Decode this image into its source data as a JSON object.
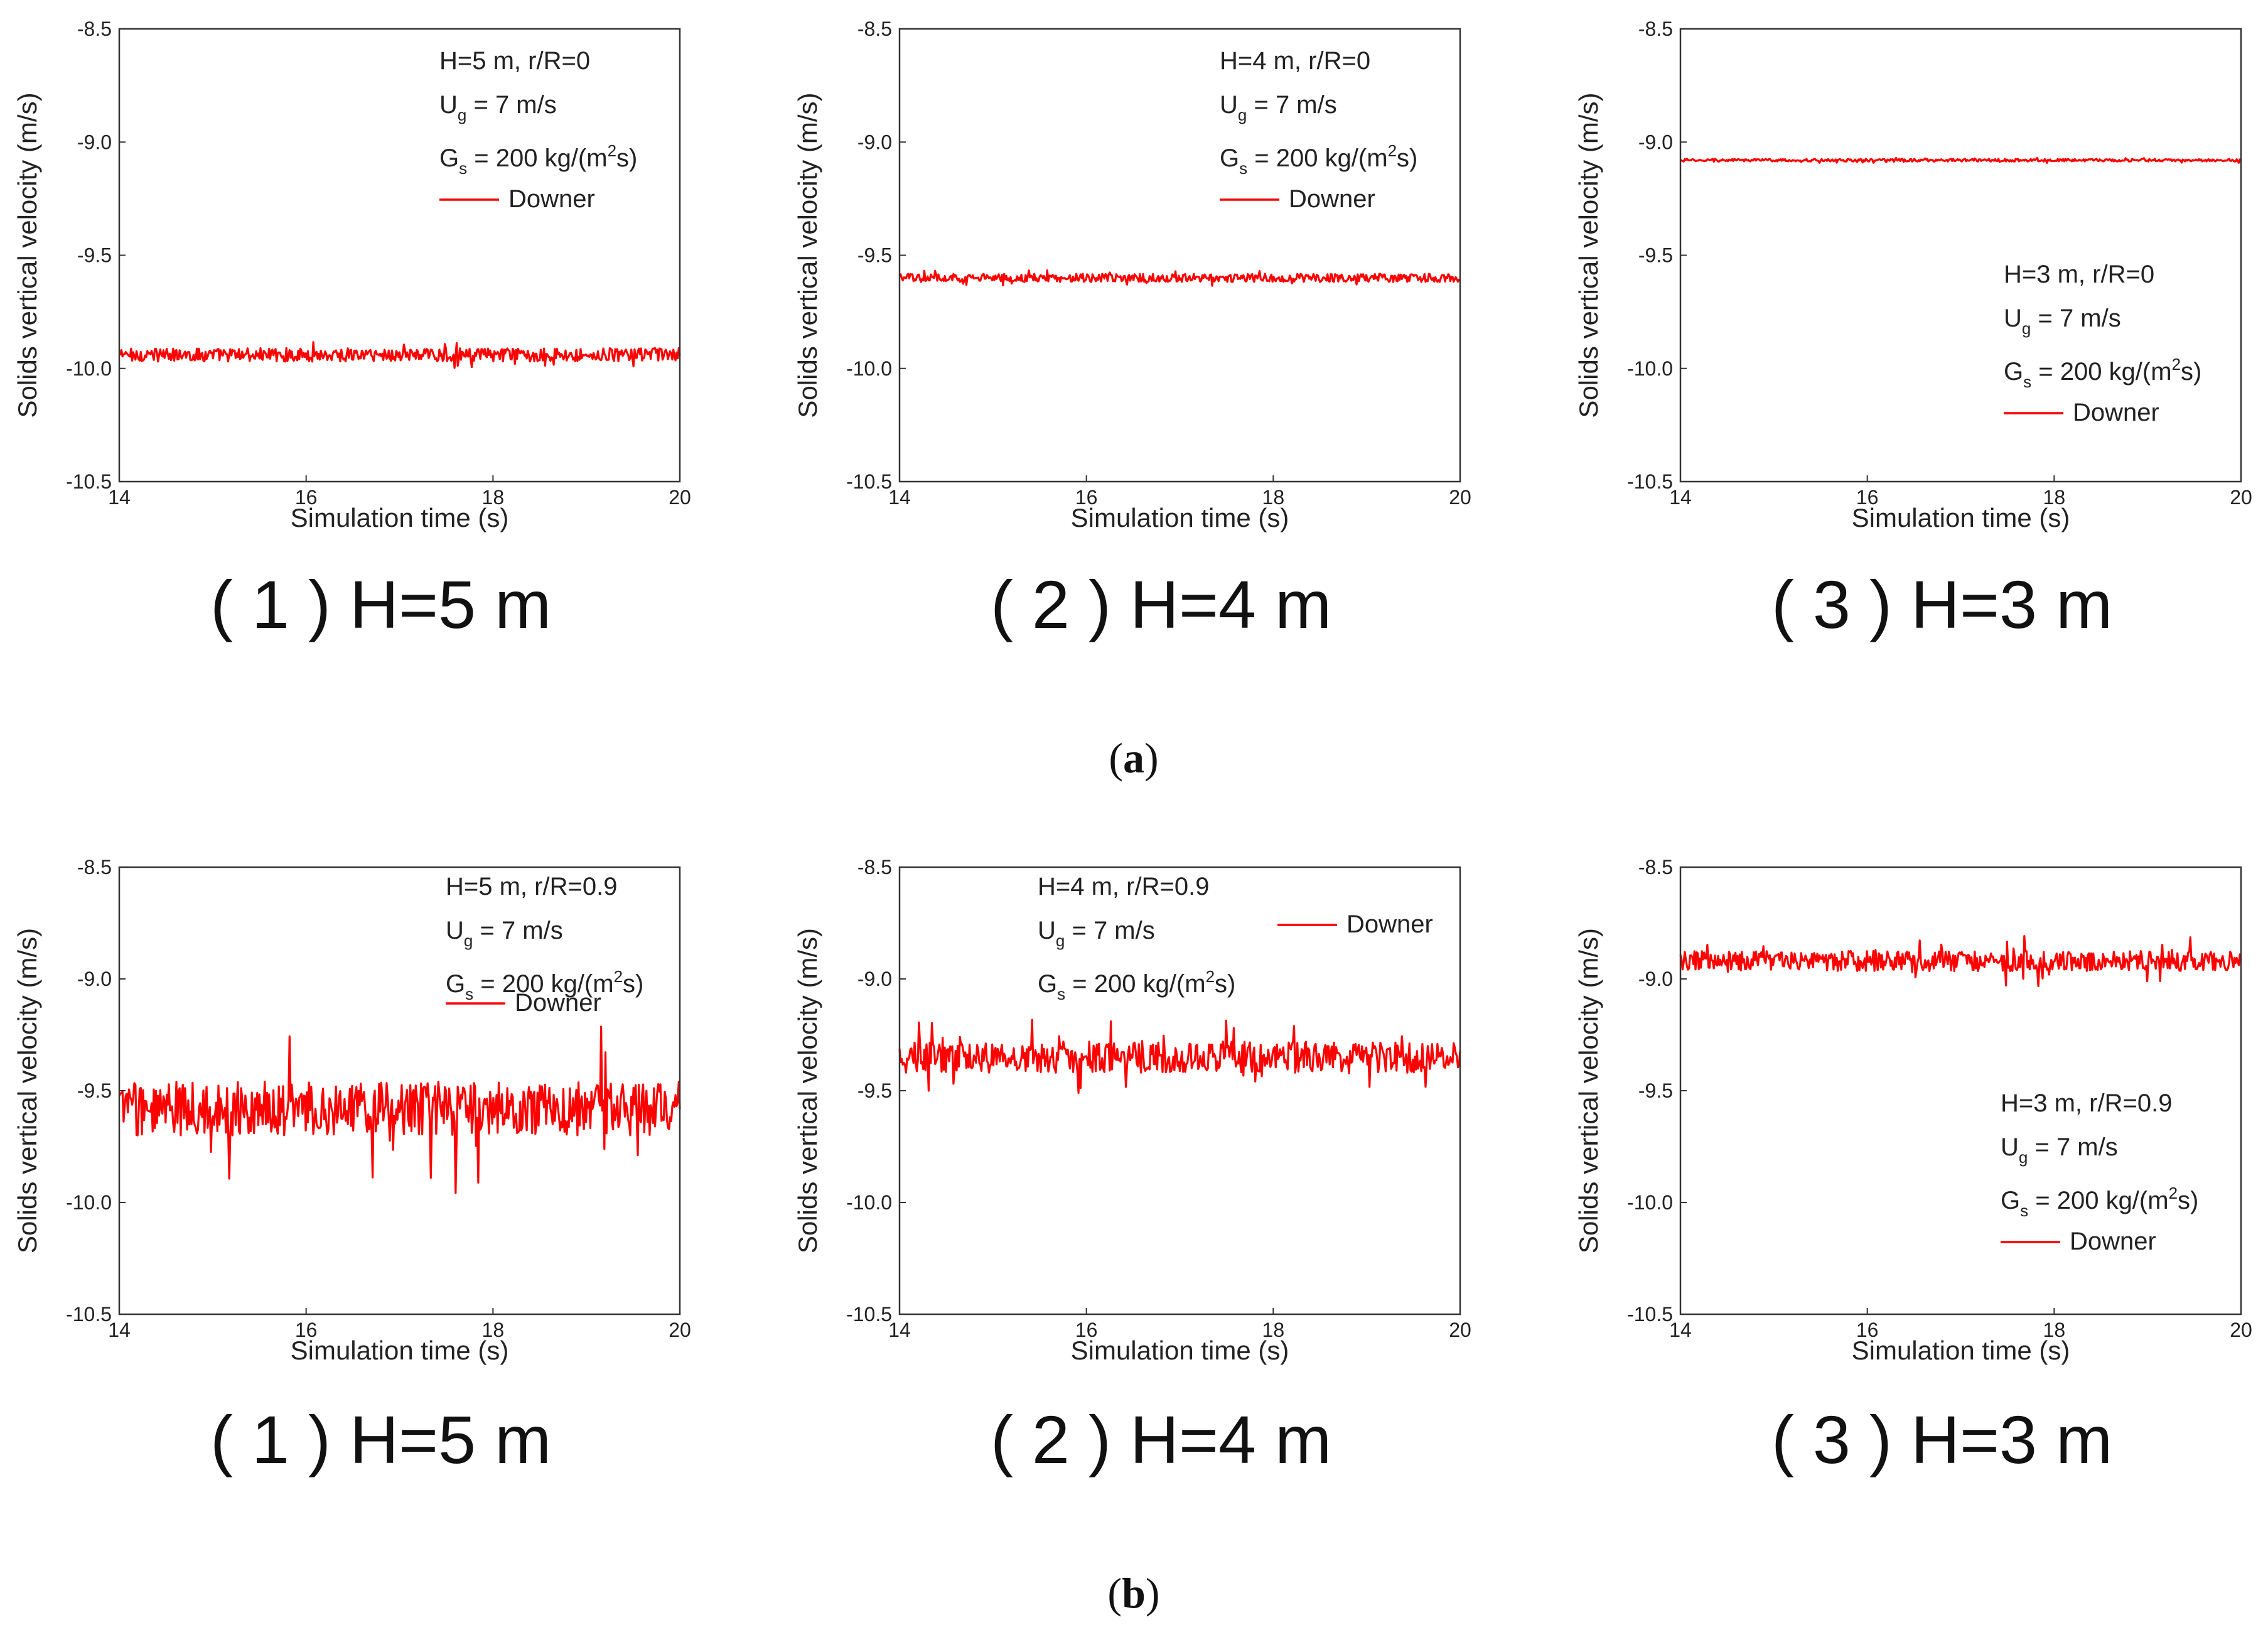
{
  "figure_parts": [
    {
      "label": "(a)",
      "letter": "a"
    },
    {
      "label": "(b)",
      "letter": "b"
    }
  ],
  "chart_data": [
    {
      "type": "line",
      "row": "a",
      "caption": "( 1 ) H=5 m",
      "annotation": {
        "line1": "H=5 m, r/R=0",
        "ug_label": "U",
        "ug_sub": "g",
        "ug_value": " = 7 m/s",
        "gs_label": "G",
        "gs_sub": "s",
        "gs_value": " = 200 kg/(m",
        "gs_sup": "2",
        "gs_end": "s)"
      },
      "legend": "Downer",
      "color": "#ff0000",
      "xlabel": "Simulation time (s)",
      "ylabel": "Solids vertical velocity (m/s)",
      "xlim": [
        14,
        20
      ],
      "ylim": [
        -10.5,
        -8.5
      ],
      "xticks": [
        14,
        16,
        18,
        20
      ],
      "yticks": [
        -8.5,
        -9.0,
        -9.5,
        -10.0,
        -10.5
      ],
      "xtick_labels": [
        "14",
        "16",
        "18",
        "20"
      ],
      "ytick_labels": [
        "-8.5",
        "-9.0",
        "-9.5",
        "-10.0",
        "-10.5"
      ],
      "series": [
        {
          "name": "Downer",
          "mean": -9.94,
          "noise_amplitude": 0.03,
          "spike_amplitude": 0.06,
          "samples": 520
        }
      ]
    },
    {
      "type": "line",
      "row": "a",
      "caption": "( 2 ) H=4 m",
      "annotation": {
        "line1": "H=4 m, r/R=0",
        "ug_label": "U",
        "ug_sub": "g",
        "ug_value": " = 7 m/s",
        "gs_label": "G",
        "gs_sub": "s",
        "gs_value": " = 200 kg/(m",
        "gs_sup": "2",
        "gs_end": "s)"
      },
      "legend": "Downer",
      "color": "#ff0000",
      "xlabel": "Simulation time (s)",
      "ylabel": "Solids vertical velocity (m/s)",
      "xlim": [
        14,
        20
      ],
      "ylim": [
        -10.5,
        -8.5
      ],
      "xticks": [
        14,
        16,
        18,
        20
      ],
      "yticks": [
        -8.5,
        -9.0,
        -9.5,
        -10.0,
        -10.5
      ],
      "xtick_labels": [
        "14",
        "16",
        "18",
        "20"
      ],
      "ytick_labels": [
        "-8.5",
        "-9.0",
        "-9.5",
        "-10.0",
        "-10.5"
      ],
      "series": [
        {
          "name": "Downer",
          "mean": -9.6,
          "noise_amplitude": 0.018,
          "spike_amplitude": 0.035,
          "samples": 520
        }
      ]
    },
    {
      "type": "line",
      "row": "a",
      "caption": "( 3 ) H=3 m",
      "annotation": {
        "line1": "H=3 m, r/R=0",
        "ug_label": "U",
        "ug_sub": "g",
        "ug_value": " = 7 m/s",
        "gs_label": "G",
        "gs_sub": "s",
        "gs_value": " = 200 kg/(m",
        "gs_sup": "2",
        "gs_end": "s)"
      },
      "legend": "Downer",
      "color": "#ff0000",
      "xlabel": "Simulation time (s)",
      "ylabel": "Solids vertical velocity (m/s)",
      "xlim": [
        14,
        20
      ],
      "ylim": [
        -10.5,
        -8.5
      ],
      "xticks": [
        14,
        16,
        18,
        20
      ],
      "yticks": [
        -8.5,
        -9.0,
        -9.5,
        -10.0,
        -10.5
      ],
      "xtick_labels": [
        "14",
        "16",
        "18",
        "20"
      ],
      "ytick_labels": [
        "-8.5",
        "-9.0",
        "-9.5",
        "-10.0",
        "-10.5"
      ],
      "series": [
        {
          "name": "Downer",
          "mean": -9.08,
          "noise_amplitude": 0.006,
          "spike_amplitude": 0.012,
          "samples": 520
        }
      ]
    },
    {
      "type": "line",
      "row": "b",
      "caption": "( 1 ) H=5 m",
      "annotation": {
        "line1": "H=5 m, r/R=0.9",
        "ug_label": "U",
        "ug_sub": "g",
        "ug_value": " = 7 m/s",
        "gs_label": "G",
        "gs_sub": "s",
        "gs_value": " = 200 kg/(m",
        "gs_sup": "2",
        "gs_end": "s)"
      },
      "legend": "Downer",
      "color": "#ff0000",
      "xlabel": "Simulation time (s)",
      "ylabel": "Solids vertical velocity (m/s)",
      "xlim": [
        14,
        20
      ],
      "ylim": [
        -10.5,
        -8.5
      ],
      "xticks": [
        14,
        16,
        18,
        20
      ],
      "yticks": [
        -8.5,
        -9.0,
        -9.5,
        -10.0,
        -10.5
      ],
      "xtick_labels": [
        "14",
        "16",
        "18",
        "20"
      ],
      "ytick_labels": [
        "-8.5",
        "-9.0",
        "-9.5",
        "-10.0",
        "-10.5"
      ],
      "series": [
        {
          "name": "Downer",
          "mean": -9.58,
          "noise_amplitude": 0.12,
          "spike_amplitude": 0.38,
          "samples": 520
        }
      ]
    },
    {
      "type": "line",
      "row": "b",
      "caption": "( 2 ) H=4 m",
      "annotation": {
        "line1": "H=4 m, r/R=0.9",
        "ug_label": "U",
        "ug_sub": "g",
        "ug_value": " = 7 m/s",
        "gs_label": "G",
        "gs_sub": "s",
        "gs_value": " = 200 kg/(m",
        "gs_sup": "2",
        "gs_end": "s)"
      },
      "legend": "Downer",
      "color": "#ff0000",
      "xlabel": "Simulation time (s)",
      "ylabel": "Solids vertical velocity (m/s)",
      "xlim": [
        14,
        20
      ],
      "ylim": [
        -10.5,
        -8.5
      ],
      "xticks": [
        14,
        16,
        18,
        20
      ],
      "yticks": [
        -8.5,
        -9.0,
        -9.5,
        -10.0,
        -10.5
      ],
      "xtick_labels": [
        "14",
        "16",
        "18",
        "20"
      ],
      "ytick_labels": [
        "-8.5",
        "-9.0",
        "-9.5",
        "-10.0",
        "-10.5"
      ],
      "series": [
        {
          "name": "Downer",
          "mean": -9.35,
          "noise_amplitude": 0.07,
          "spike_amplitude": 0.18,
          "samples": 520
        }
      ]
    },
    {
      "type": "line",
      "row": "b",
      "caption": "( 3 ) H=3 m",
      "annotation": {
        "line1": "H=3 m, r/R=0.9",
        "ug_label": "U",
        "ug_sub": "g",
        "ug_value": " = 7 m/s",
        "gs_label": "G",
        "gs_sub": "s",
        "gs_value": " = 200 kg/(m",
        "gs_sup": "2",
        "gs_end": "s)"
      },
      "legend": "Downer",
      "color": "#ff0000",
      "xlabel": "Simulation time (s)",
      "ylabel": "Solids vertical velocity (m/s)",
      "xlim": [
        14,
        20
      ],
      "ylim": [
        -10.5,
        -8.5
      ],
      "xticks": [
        14,
        16,
        18,
        20
      ],
      "yticks": [
        -8.5,
        -9.0,
        -9.5,
        -10.0,
        -10.5
      ],
      "xtick_labels": [
        "14",
        "16",
        "18",
        "20"
      ],
      "ytick_labels": [
        "-8.5",
        "-9.0",
        "-9.5",
        "-10.0",
        "-10.5"
      ],
      "series": [
        {
          "name": "Downer",
          "mean": -8.92,
          "noise_amplitude": 0.045,
          "spike_amplitude": 0.12,
          "samples": 520
        }
      ]
    }
  ]
}
